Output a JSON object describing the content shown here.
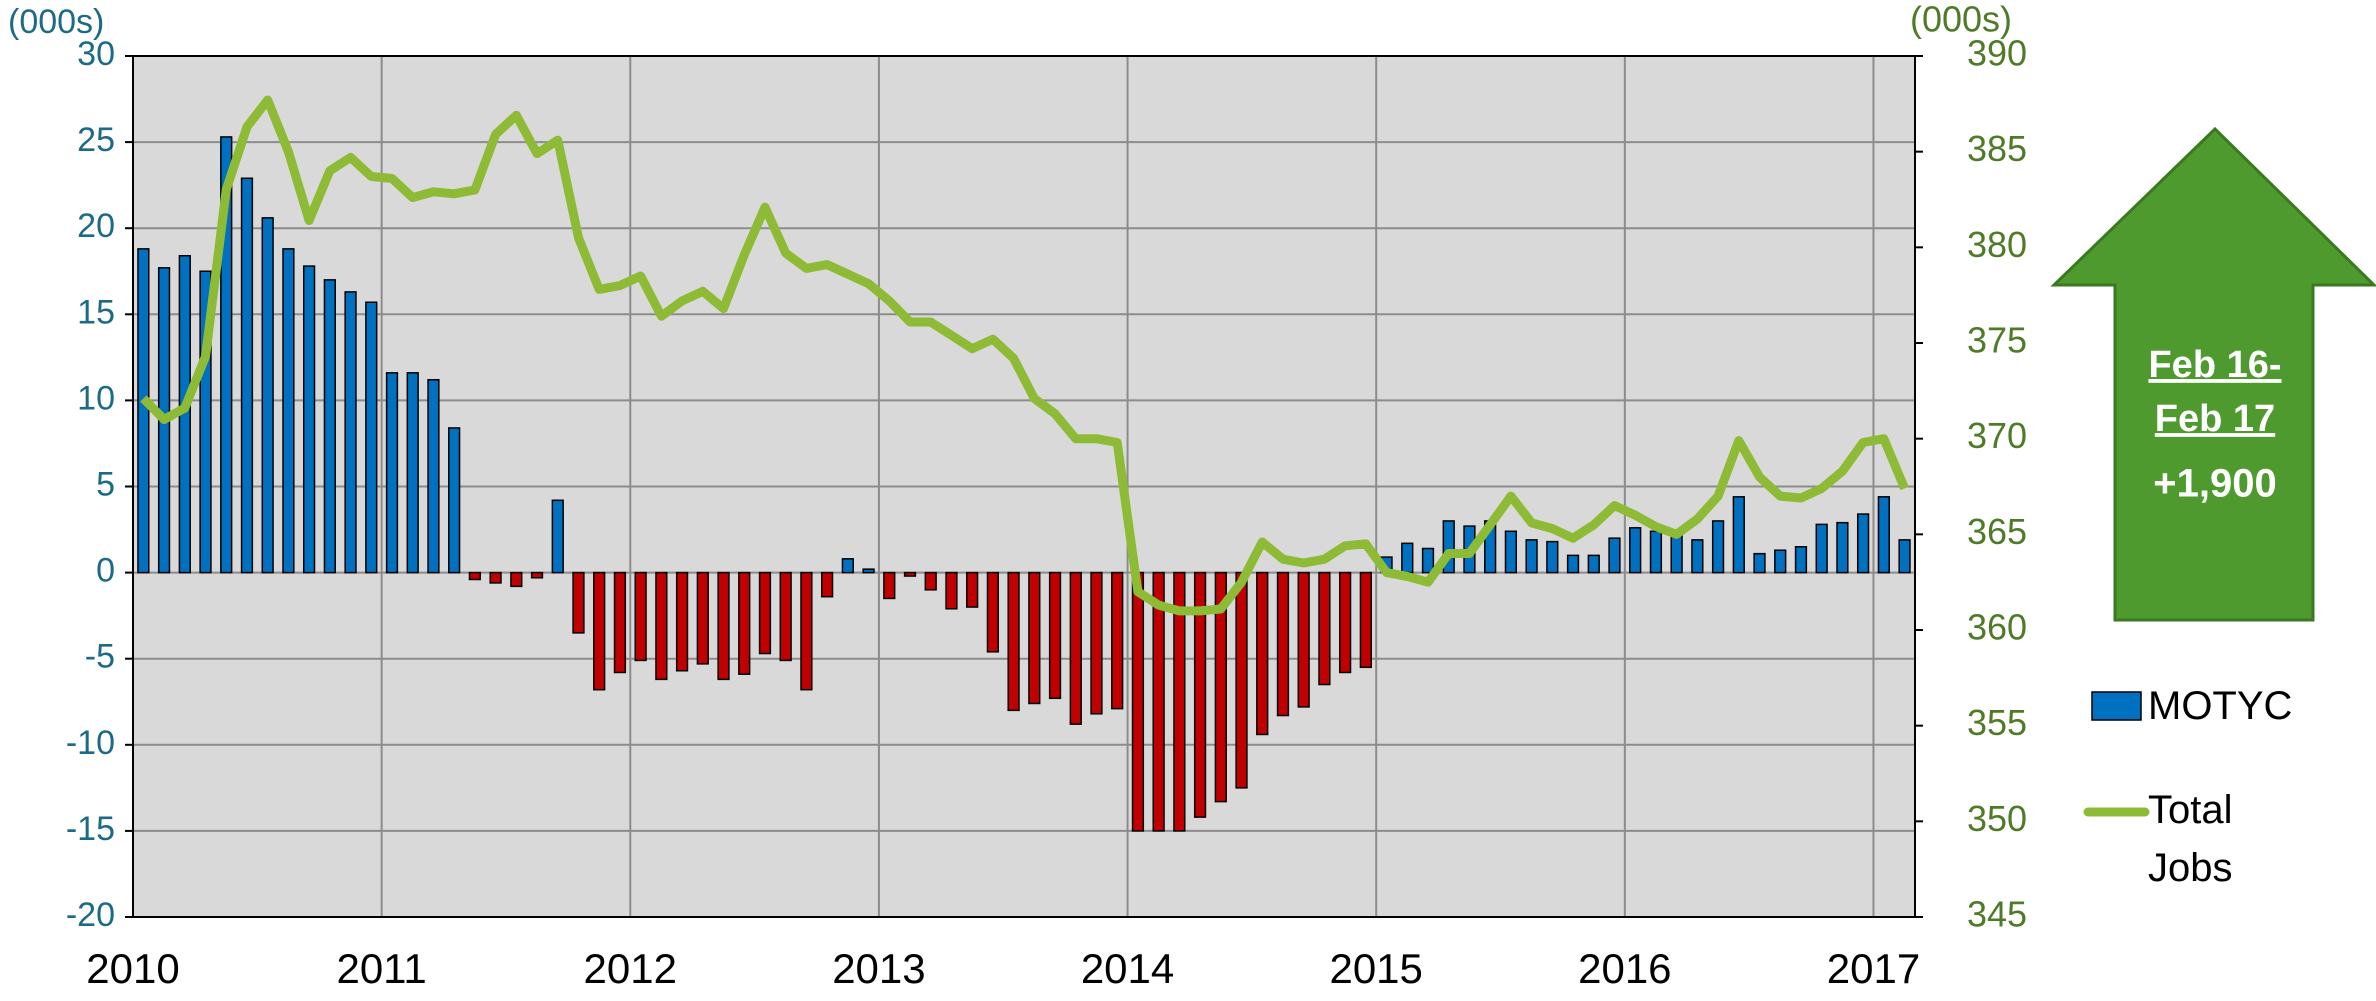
{
  "chart_data": {
    "type": "bar",
    "ylabel": "(000s)",
    "y2label": "(000s)",
    "categories": [
      "2010",
      null,
      null,
      null,
      null,
      null,
      null,
      null,
      null,
      null,
      null,
      null,
      "2011",
      null,
      null,
      null,
      null,
      null,
      null,
      null,
      null,
      null,
      null,
      null,
      "2012",
      null,
      null,
      null,
      null,
      null,
      null,
      null,
      null,
      null,
      null,
      null,
      "2013",
      null,
      null,
      null,
      null,
      null,
      null,
      null,
      null,
      null,
      null,
      null,
      "2014",
      null,
      null,
      null,
      null,
      null,
      null,
      null,
      null,
      null,
      null,
      null,
      "2015",
      null,
      null,
      null,
      null,
      null,
      null,
      null,
      null,
      null,
      null,
      null,
      "2016",
      null,
      null,
      null,
      null,
      null,
      null,
      null,
      null,
      null,
      null,
      null,
      "2017",
      null
    ],
    "series": [
      {
        "name": "MOTYC",
        "type": "bar",
        "axis": "y",
        "color": "#0070c0",
        "negative_color": "#c00000",
        "values": [
          18.8,
          17.7,
          18.4,
          17.5,
          25.3,
          22.9,
          20.6,
          18.8,
          17.8,
          17.0,
          16.3,
          15.7,
          11.6,
          11.6,
          11.2,
          8.4,
          -0.4,
          -0.6,
          -0.8,
          -0.3,
          4.2,
          -3.5,
          -6.8,
          -5.8,
          -5.1,
          -6.2,
          -5.7,
          -5.3,
          -6.2,
          -5.9,
          -4.7,
          -5.1,
          -6.8,
          -1.4,
          0.8,
          0.2,
          -1.5,
          -0.2,
          -1.0,
          -2.1,
          -2.0,
          -4.6,
          -8.0,
          -7.6,
          -7.3,
          -8.8,
          -8.2,
          -7.9,
          -15.0,
          -15.0,
          -15.0,
          -14.2,
          -13.3,
          -12.5,
          -9.4,
          -8.3,
          -7.8,
          -6.5,
          -5.8,
          -5.5,
          0.9,
          1.7,
          1.4,
          3.0,
          2.7,
          3.0,
          2.4,
          1.9,
          1.8,
          1.0,
          1.0,
          2.0,
          2.6,
          2.4,
          2.3,
          1.9,
          3.0,
          4.4,
          1.1,
          1.3,
          1.5,
          2.8,
          2.9,
          3.4,
          4.4,
          1.9
        ]
      },
      {
        "name": "Total Jobs",
        "type": "line",
        "axis": "y2",
        "color": "#8dbb35",
        "values": [
          372.1,
          371.0,
          371.6,
          374.3,
          383.0,
          386.3,
          387.7,
          385.0,
          381.4,
          384.0,
          384.7,
          383.7,
          383.6,
          382.6,
          382.9,
          382.8,
          383.0,
          385.9,
          386.9,
          384.9,
          385.6,
          380.5,
          377.8,
          378.0,
          378.5,
          376.4,
          377.2,
          377.7,
          376.8,
          379.6,
          382.1,
          379.7,
          378.9,
          379.1,
          378.6,
          378.1,
          377.2,
          376.1,
          376.1,
          375.4,
          374.7,
          375.2,
          374.2,
          372.1,
          371.3,
          370.0,
          370.0,
          369.8,
          362.0,
          361.3,
          361.0,
          361.0,
          361.1,
          362.5,
          364.6,
          363.7,
          363.5,
          363.7,
          364.4,
          364.5,
          363.0,
          362.8,
          362.5,
          364.0,
          364.0,
          365.5,
          367.0,
          365.6,
          365.3,
          364.8,
          365.5,
          366.5,
          366.0,
          365.4,
          365.0,
          365.8,
          367.0,
          369.9,
          368.0,
          367.0,
          366.9,
          367.4,
          368.3,
          369.8,
          370.0,
          367.4
        ]
      }
    ],
    "ylim": [
      -20,
      30
    ],
    "yticks": [
      -20,
      -15,
      -10,
      -5,
      0,
      5,
      10,
      15,
      20,
      25,
      30
    ],
    "y2lim": [
      345,
      390
    ],
    "y2ticks": [
      345,
      350,
      355,
      360,
      365,
      370,
      375,
      380,
      385,
      390
    ],
    "grid": true,
    "legend": "right",
    "annotation": [
      "Feb 16-",
      "Feb 17",
      "+1,900"
    ]
  }
}
